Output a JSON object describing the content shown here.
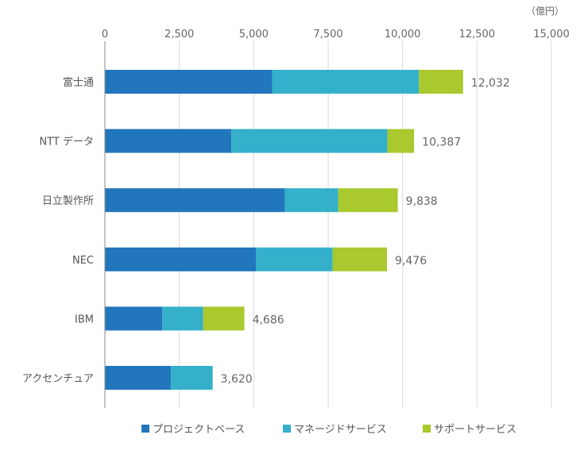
{
  "chart_data": {
    "type": "bar",
    "orientation": "horizontal",
    "stacked": true,
    "unit_label": "（億円）",
    "xlim": [
      0,
      15000
    ],
    "x_ticks": [
      0,
      2500,
      5000,
      7500,
      10000,
      12500,
      15000
    ],
    "x_tick_labels": [
      "0",
      "2,500",
      "5,000",
      "7,500",
      "10,000",
      "12,500",
      "15,000"
    ],
    "grid": true,
    "legend_position": "bottom",
    "categories": [
      "富士通",
      "NTT データ",
      "日立製作所",
      "NEC",
      "IBM",
      "アクセンチュア"
    ],
    "series": [
      {
        "name": "プロジェクトベース",
        "color": "#2176bc",
        "values": [
          5620,
          4250,
          6050,
          5080,
          1930,
          2220
        ]
      },
      {
        "name": "マネージドサービス",
        "color": "#35b0cb",
        "values": [
          4930,
          5240,
          1790,
          2570,
          1370,
          1400
        ]
      },
      {
        "name": "サポートサービス",
        "color": "#a9c92e",
        "values": [
          1482,
          897,
          1998,
          1826,
          1386,
          0
        ]
      }
    ],
    "totals": [
      12032,
      10387,
      9838,
      9476,
      4686,
      3620
    ],
    "total_labels": [
      "12,032",
      "10,387",
      "9,838",
      "9,476",
      "4,686",
      "3,620"
    ]
  }
}
